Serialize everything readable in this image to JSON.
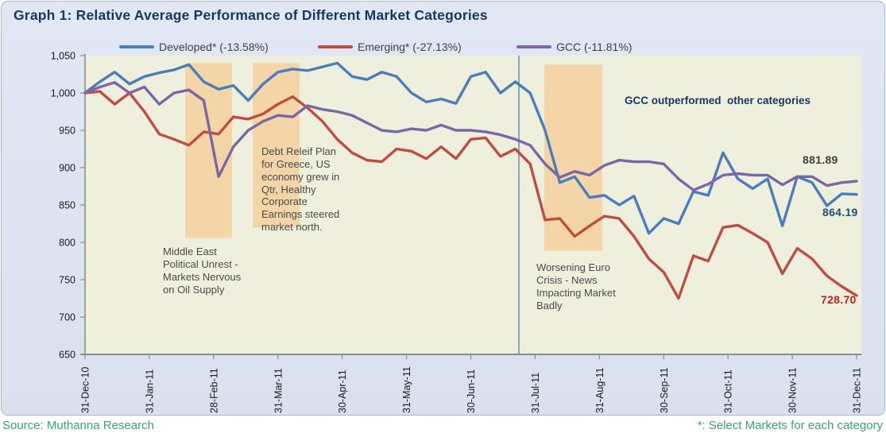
{
  "title": "Graph 1: Relative Average Performance of Different Market Categories",
  "colors": {
    "card_background": "#dce3f1",
    "plot_background": "#eef0dd",
    "developed_line": "#4a7ebb",
    "emerging_line": "#bf4d44",
    "gcc_line": "#7a68a6",
    "highlight_band": "#f4d2a2",
    "vertical_line": "#5b87b8",
    "axis": "#8c8c8c",
    "tick_text": "#1a1a1a",
    "title_text": "#17375e",
    "footer_text": "#3ba46d"
  },
  "chart_data": {
    "type": "line",
    "title": "Graph 1: Relative Average Performance of Different Market Categories",
    "xlabel": "",
    "ylabel": "",
    "ylim": [
      650,
      1050
    ],
    "ytick_step": 50,
    "y_tick_labels": [
      "1,050",
      "1,000",
      "950",
      "900",
      "850",
      "800",
      "750",
      "700",
      "650"
    ],
    "x_labels": [
      "31-Dec-10",
      "31-Jan-11",
      "28-Feb-11",
      "31-Mar-11",
      "30-Apr-11",
      "31-May-11",
      "30-Jun-11",
      "31-Jul-11",
      "31-Aug-11",
      "30-Sep-11",
      "31-Oct-11",
      "30-Nov-11",
      "31-Dec-11"
    ],
    "grid": false,
    "legend_position": "top",
    "series": [
      {
        "name": "Developed",
        "legend_label": "Developed* (-13.58%)",
        "color": "#4a7ebb",
        "end_label": "864.19",
        "values": [
          1000,
          1015,
          1028,
          1012,
          1022,
          1027,
          1031,
          1038,
          1015,
          1005,
          1010,
          990,
          1012,
          1028,
          1032,
          1030,
          1035,
          1040,
          1022,
          1018,
          1028,
          1022,
          1000,
          988,
          992,
          986,
          1022,
          1028,
          1000,
          1015,
          1000,
          950,
          880,
          888,
          860,
          863,
          850,
          862,
          812,
          832,
          825,
          868,
          863,
          920,
          885,
          872,
          885,
          822,
          888,
          880,
          849,
          865,
          864.19
        ]
      },
      {
        "name": "Emerging",
        "legend_label": "Emerging* (-27.13%)",
        "color": "#bf4d44",
        "end_label": "728.70",
        "values": [
          1000,
          1002,
          985,
          1000,
          975,
          945,
          938,
          930,
          948,
          945,
          968,
          965,
          972,
          985,
          995,
          980,
          962,
          938,
          920,
          910,
          908,
          925,
          922,
          912,
          928,
          912,
          938,
          940,
          915,
          925,
          905,
          830,
          832,
          808,
          822,
          835,
          832,
          808,
          778,
          760,
          725,
          782,
          775,
          820,
          823,
          812,
          800,
          758,
          792,
          778,
          755,
          741,
          728.7
        ]
      },
      {
        "name": "GCC",
        "legend_label": "GCC (-11.81%)",
        "color": "#7a68a6",
        "end_label": "881.89",
        "values": [
          1000,
          1008,
          1014,
          1000,
          1008,
          985,
          1000,
          1004,
          990,
          888,
          928,
          950,
          962,
          970,
          968,
          983,
          978,
          975,
          970,
          960,
          950,
          948,
          952,
          950,
          957,
          950,
          950,
          948,
          944,
          938,
          930,
          905,
          887,
          895,
          890,
          903,
          910,
          908,
          908,
          905,
          885,
          870,
          878,
          890,
          892,
          890,
          890,
          877,
          888,
          888,
          876,
          880,
          881.89
        ]
      }
    ],
    "highlight_bands": [
      {
        "x1_week": 6.75,
        "x2_week": 9.91,
        "y_top": 1040,
        "y_bottom": 806
      },
      {
        "x1_week": 11.3,
        "x2_week": 14.46,
        "y_top": 1040,
        "y_bottom": 820
      },
      {
        "x1_week": 30.95,
        "x2_week": 34.86,
        "y_top": 1038,
        "y_bottom": 789
      }
    ],
    "vertical_line_week": 29.24,
    "annotations": [
      {
        "id": "middle_east",
        "text": "Middle East\nPolitical Unrest -\nMarkets Nervous\non Oil Supply"
      },
      {
        "id": "debt_relief",
        "text": "Debt Releif Plan\nfor Greece, US\neconomy grew in\nQtr, Healthy\nCorporate\nEarnings  steered\nmarket north."
      },
      {
        "id": "worsening_euro",
        "text": "Worsening Euro\nCrisis - News\nImpacting Market\nBadly"
      },
      {
        "id": "gcc_outperformed",
        "text": "GCC outperformed  other categories"
      }
    ],
    "end_labels": {
      "gcc": "881.89",
      "developed": "864.19",
      "emerging": "728.70"
    }
  },
  "footer": {
    "source": "Source: Muthanna Research",
    "note": "*: Select Markets for each category"
  }
}
